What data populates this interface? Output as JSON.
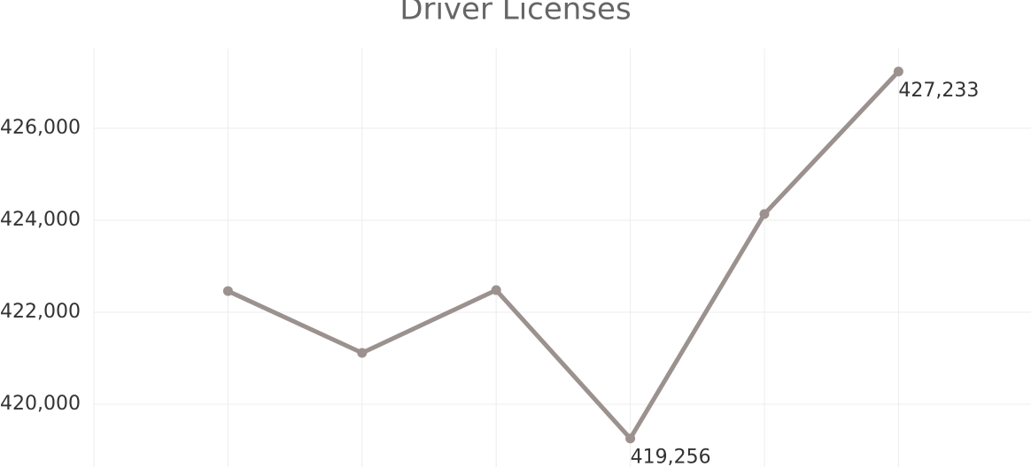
{
  "chart_data": {
    "type": "line",
    "title": "Driver Licenses",
    "categories": [
      null,
      null,
      null,
      null,
      null,
      null
    ],
    "series": [
      {
        "name": null,
        "color": "#9b918e",
        "values": [
          422460,
          421115,
          422480,
          419256,
          424135,
          427233
        ],
        "value_labels": [
          null,
          null,
          null,
          "419,256",
          null,
          "427,233"
        ]
      }
    ],
    "ylim": [
      418635,
      427730
    ],
    "yticks": [
      {
        "value": 420000,
        "label": "420,000"
      },
      {
        "value": 422000,
        "label": "422,000"
      },
      {
        "value": 424000,
        "label": "424,000"
      },
      {
        "value": 426000,
        "label": "426,000"
      }
    ],
    "grid": true
  }
}
